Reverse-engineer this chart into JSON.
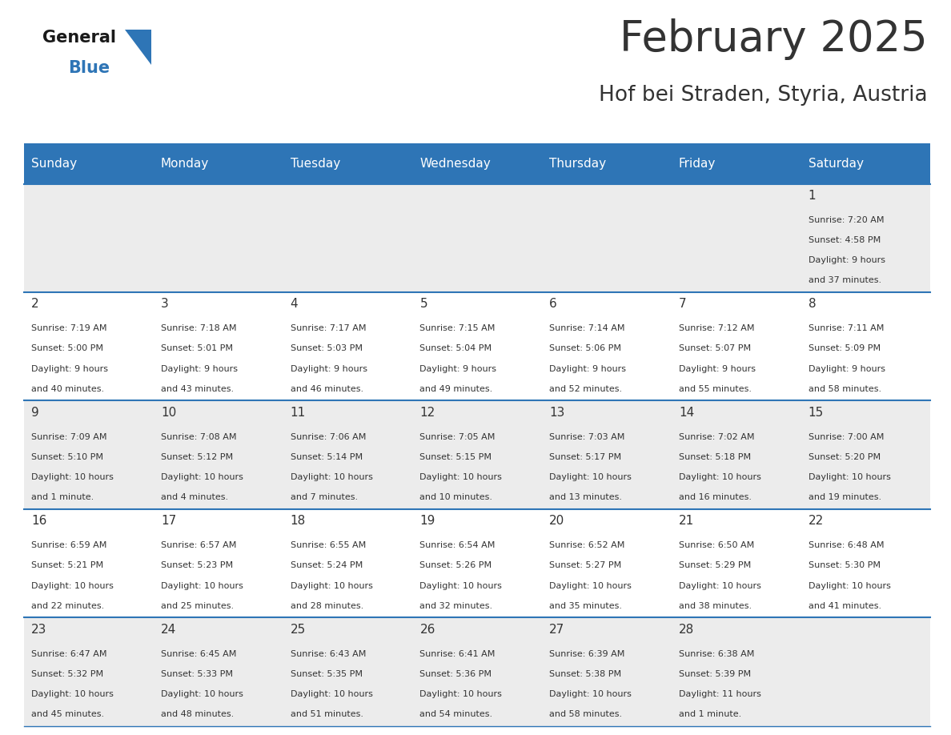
{
  "title": "February 2025",
  "subtitle": "Hof bei Straden, Styria, Austria",
  "header_color": "#2e75b6",
  "header_text_color": "#ffffff",
  "day_names": [
    "Sunday",
    "Monday",
    "Tuesday",
    "Wednesday",
    "Thursday",
    "Friday",
    "Saturday"
  ],
  "bg_color": "#ffffff",
  "cell_bg_row0": "#ececec",
  "cell_bg_row1": "#ffffff",
  "cell_bg_row2": "#ececec",
  "cell_bg_row3": "#ffffff",
  "cell_bg_row4": "#ececec",
  "border_color": "#2e75b6",
  "text_color": "#333333",
  "logo_black": "#1a1a1a",
  "logo_blue": "#2e75b6",
  "days": [
    {
      "day": 1,
      "col": 6,
      "row": 0,
      "sunrise": "7:20 AM",
      "sunset": "4:58 PM",
      "daylight": "9 hours and 37 minutes."
    },
    {
      "day": 2,
      "col": 0,
      "row": 1,
      "sunrise": "7:19 AM",
      "sunset": "5:00 PM",
      "daylight": "9 hours and 40 minutes."
    },
    {
      "day": 3,
      "col": 1,
      "row": 1,
      "sunrise": "7:18 AM",
      "sunset": "5:01 PM",
      "daylight": "9 hours and 43 minutes."
    },
    {
      "day": 4,
      "col": 2,
      "row": 1,
      "sunrise": "7:17 AM",
      "sunset": "5:03 PM",
      "daylight": "9 hours and 46 minutes."
    },
    {
      "day": 5,
      "col": 3,
      "row": 1,
      "sunrise": "7:15 AM",
      "sunset": "5:04 PM",
      "daylight": "9 hours and 49 minutes."
    },
    {
      "day": 6,
      "col": 4,
      "row": 1,
      "sunrise": "7:14 AM",
      "sunset": "5:06 PM",
      "daylight": "9 hours and 52 minutes."
    },
    {
      "day": 7,
      "col": 5,
      "row": 1,
      "sunrise": "7:12 AM",
      "sunset": "5:07 PM",
      "daylight": "9 hours and 55 minutes."
    },
    {
      "day": 8,
      "col": 6,
      "row": 1,
      "sunrise": "7:11 AM",
      "sunset": "5:09 PM",
      "daylight": "9 hours and 58 minutes."
    },
    {
      "day": 9,
      "col": 0,
      "row": 2,
      "sunrise": "7:09 AM",
      "sunset": "5:10 PM",
      "daylight": "10 hours and 1 minute."
    },
    {
      "day": 10,
      "col": 1,
      "row": 2,
      "sunrise": "7:08 AM",
      "sunset": "5:12 PM",
      "daylight": "10 hours and 4 minutes."
    },
    {
      "day": 11,
      "col": 2,
      "row": 2,
      "sunrise": "7:06 AM",
      "sunset": "5:14 PM",
      "daylight": "10 hours and 7 minutes."
    },
    {
      "day": 12,
      "col": 3,
      "row": 2,
      "sunrise": "7:05 AM",
      "sunset": "5:15 PM",
      "daylight": "10 hours and 10 minutes."
    },
    {
      "day": 13,
      "col": 4,
      "row": 2,
      "sunrise": "7:03 AM",
      "sunset": "5:17 PM",
      "daylight": "10 hours and 13 minutes."
    },
    {
      "day": 14,
      "col": 5,
      "row": 2,
      "sunrise": "7:02 AM",
      "sunset": "5:18 PM",
      "daylight": "10 hours and 16 minutes."
    },
    {
      "day": 15,
      "col": 6,
      "row": 2,
      "sunrise": "7:00 AM",
      "sunset": "5:20 PM",
      "daylight": "10 hours and 19 minutes."
    },
    {
      "day": 16,
      "col": 0,
      "row": 3,
      "sunrise": "6:59 AM",
      "sunset": "5:21 PM",
      "daylight": "10 hours and 22 minutes."
    },
    {
      "day": 17,
      "col": 1,
      "row": 3,
      "sunrise": "6:57 AM",
      "sunset": "5:23 PM",
      "daylight": "10 hours and 25 minutes."
    },
    {
      "day": 18,
      "col": 2,
      "row": 3,
      "sunrise": "6:55 AM",
      "sunset": "5:24 PM",
      "daylight": "10 hours and 28 minutes."
    },
    {
      "day": 19,
      "col": 3,
      "row": 3,
      "sunrise": "6:54 AM",
      "sunset": "5:26 PM",
      "daylight": "10 hours and 32 minutes."
    },
    {
      "day": 20,
      "col": 4,
      "row": 3,
      "sunrise": "6:52 AM",
      "sunset": "5:27 PM",
      "daylight": "10 hours and 35 minutes."
    },
    {
      "day": 21,
      "col": 5,
      "row": 3,
      "sunrise": "6:50 AM",
      "sunset": "5:29 PM",
      "daylight": "10 hours and 38 minutes."
    },
    {
      "day": 22,
      "col": 6,
      "row": 3,
      "sunrise": "6:48 AM",
      "sunset": "5:30 PM",
      "daylight": "10 hours and 41 minutes."
    },
    {
      "day": 23,
      "col": 0,
      "row": 4,
      "sunrise": "6:47 AM",
      "sunset": "5:32 PM",
      "daylight": "10 hours and 45 minutes."
    },
    {
      "day": 24,
      "col": 1,
      "row": 4,
      "sunrise": "6:45 AM",
      "sunset": "5:33 PM",
      "daylight": "10 hours and 48 minutes."
    },
    {
      "day": 25,
      "col": 2,
      "row": 4,
      "sunrise": "6:43 AM",
      "sunset": "5:35 PM",
      "daylight": "10 hours and 51 minutes."
    },
    {
      "day": 26,
      "col": 3,
      "row": 4,
      "sunrise": "6:41 AM",
      "sunset": "5:36 PM",
      "daylight": "10 hours and 54 minutes."
    },
    {
      "day": 27,
      "col": 4,
      "row": 4,
      "sunrise": "6:39 AM",
      "sunset": "5:38 PM",
      "daylight": "10 hours and 58 minutes."
    },
    {
      "day": 28,
      "col": 5,
      "row": 4,
      "sunrise": "6:38 AM",
      "sunset": "5:39 PM",
      "daylight": "11 hours and 1 minute."
    }
  ]
}
